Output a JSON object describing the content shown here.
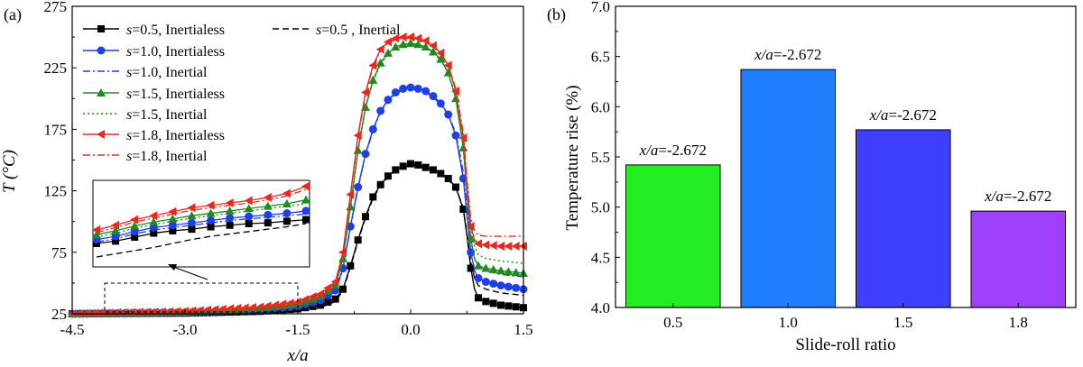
{
  "panels": {
    "a": {
      "label": "(a)",
      "legend": [
        {
          "key": "s05_nl",
          "text_prefix": "s",
          "text_rest": "=0.5, Inertialess",
          "color": "#000000",
          "dash": "solid",
          "marker": "square"
        },
        {
          "key": "s05_in",
          "text_prefix": "s",
          "text_rest": "=0.5 , Inertial",
          "color": "#000000",
          "dash": "dash",
          "marker": "none"
        },
        {
          "key": "s10_nl",
          "text_prefix": "s",
          "text_rest": "=1.0, Inertialess",
          "color": "#1f3fe6",
          "dash": "solid",
          "marker": "circle"
        },
        {
          "key": "s10_in",
          "text_prefix": "s",
          "text_rest": "=1.0, Inertial",
          "color": "#1f3fe6",
          "dash": "dashdot",
          "marker": "none"
        },
        {
          "key": "s15_nl",
          "text_prefix": "s",
          "text_rest": "=1.5, Inertialess",
          "color": "#1f8a1f",
          "dash": "solid",
          "marker": "triangle"
        },
        {
          "key": "s15_in",
          "text_prefix": "s",
          "text_rest": "=1.5, Inertial",
          "color": "#1f8a1f",
          "dash": "dot",
          "marker": "none"
        },
        {
          "key": "s18_nl",
          "text_prefix": "s",
          "text_rest": "=1.8, Inertialess",
          "color": "#e62a1f",
          "dash": "solid",
          "marker": "lefttri"
        },
        {
          "key": "s18_in",
          "text_prefix": "s",
          "text_rest": "=1.8, Inertial",
          "color": "#e62a1f",
          "dash": "dashdot",
          "marker": "none"
        }
      ]
    },
    "b": {
      "label": "(b)"
    }
  },
  "chart_data": [
    {
      "type": "line",
      "title": "",
      "xlabel": "x/a",
      "ylabel": "T (°C)",
      "xlim": [
        -4.5,
        1.5
      ],
      "ylim": [
        25,
        275
      ],
      "xticks": [
        -4.5,
        -3.0,
        -1.5,
        0.0,
        1.5
      ],
      "xtick_labels": [
        "-4.5",
        "-3.0",
        "-1.5",
        "0.0",
        "1.5"
      ],
      "yticks": [
        25,
        75,
        125,
        175,
        225,
        275
      ],
      "ytick_labels": [
        "25",
        "75",
        "125",
        "175",
        "225",
        "275"
      ],
      "series": [
        {
          "name": "s=0.5, Inertialess",
          "key": "s05_nl",
          "x": [
            -4.5,
            -3.0,
            -2.0,
            -1.5,
            -1.2,
            -1.0,
            -0.9,
            -0.8,
            -0.7,
            -0.6,
            -0.5,
            -0.4,
            -0.3,
            -0.2,
            -0.1,
            0.0,
            0.1,
            0.2,
            0.3,
            0.4,
            0.5,
            0.6,
            0.7,
            0.75,
            0.8,
            0.85,
            0.9,
            1.0,
            1.2,
            1.5
          ],
          "y": [
            25,
            25.5,
            27,
            29,
            32,
            37,
            45,
            64,
            85,
            104,
            120,
            130,
            137,
            142,
            145,
            147,
            146,
            144,
            142,
            139,
            135,
            128,
            110,
            88,
            62,
            45,
            38,
            35,
            32,
            30
          ]
        },
        {
          "name": "s=0.5 , Inertial",
          "key": "s05_in",
          "x": [
            -4.5,
            -3.0,
            -2.0,
            -1.5,
            -1.2,
            -1.0,
            -0.9,
            -0.8,
            -0.7,
            -0.6,
            -0.5,
            -0.4,
            -0.3,
            -0.2,
            -0.1,
            0.0,
            0.1,
            0.2,
            0.3,
            0.4,
            0.5,
            0.6,
            0.7,
            0.75,
            0.8,
            0.85,
            0.9,
            1.0,
            1.2,
            1.5
          ],
          "y": [
            25,
            25.3,
            26,
            27.5,
            30,
            35,
            44,
            63,
            84,
            103,
            119,
            129,
            136,
            141,
            144,
            146,
            145,
            143,
            141,
            138,
            134,
            128,
            111,
            90,
            67,
            54,
            48,
            45,
            42,
            40
          ]
        },
        {
          "name": "s=1.0, Inertialess",
          "key": "s10_nl",
          "x": [
            -4.5,
            -3.0,
            -2.0,
            -1.5,
            -1.2,
            -1.0,
            -0.9,
            -0.8,
            -0.7,
            -0.6,
            -0.5,
            -0.4,
            -0.3,
            -0.2,
            -0.1,
            0.0,
            0.1,
            0.2,
            0.3,
            0.4,
            0.5,
            0.6,
            0.7,
            0.75,
            0.8,
            0.85,
            0.9,
            1.0,
            1.2,
            1.5
          ],
          "y": [
            25,
            26,
            28.5,
            31,
            36,
            44,
            62,
            96,
            128,
            155,
            175,
            190,
            199,
            205,
            208,
            209,
            208,
            206,
            202,
            196,
            187,
            170,
            135,
            105,
            75,
            60,
            54,
            51,
            48,
            45
          ]
        },
        {
          "name": "s=1.0, Inertial",
          "key": "s10_in",
          "x": [
            -4.5,
            -3.0,
            -2.0,
            -1.5,
            -1.2,
            -1.0,
            -0.9,
            -0.8,
            -0.7,
            -0.6,
            -0.5,
            -0.4,
            -0.3,
            -0.2,
            -0.1,
            0.0,
            0.1,
            0.2,
            0.3,
            0.4,
            0.5,
            0.6,
            0.7,
            0.75,
            0.8,
            0.85,
            0.9,
            1.0,
            1.2,
            1.5
          ],
          "y": [
            25,
            25.8,
            28,
            30.5,
            35.5,
            43,
            61,
            95,
            127,
            154,
            174,
            189,
            198,
            204,
            207,
            208,
            207,
            205,
            201,
            195,
            187,
            172,
            140,
            112,
            84,
            70,
            63,
            60,
            57,
            55
          ]
        },
        {
          "name": "s=1.5, Inertialess",
          "key": "s15_nl",
          "x": [
            -4.5,
            -3.0,
            -2.0,
            -1.5,
            -1.2,
            -1.0,
            -0.9,
            -0.8,
            -0.7,
            -0.6,
            -0.5,
            -0.4,
            -0.3,
            -0.2,
            -0.1,
            0.0,
            0.1,
            0.2,
            0.3,
            0.4,
            0.5,
            0.6,
            0.7,
            0.75,
            0.8,
            0.85,
            0.9,
            1.0,
            1.2,
            1.5
          ],
          "y": [
            25,
            26.5,
            29.5,
            33,
            39,
            48,
            70,
            112,
            158,
            193,
            215,
            229,
            237,
            242,
            244,
            245,
            244,
            242,
            238,
            232,
            221,
            200,
            160,
            122,
            86,
            70,
            64,
            62,
            60,
            58
          ]
        },
        {
          "name": "s=1.5, Inertial",
          "key": "s15_in",
          "x": [
            -4.5,
            -3.0,
            -2.0,
            -1.5,
            -1.2,
            -1.0,
            -0.9,
            -0.8,
            -0.7,
            -0.6,
            -0.5,
            -0.4,
            -0.3,
            -0.2,
            -0.1,
            0.0,
            0.1,
            0.2,
            0.3,
            0.4,
            0.5,
            0.6,
            0.7,
            0.75,
            0.8,
            0.85,
            0.9,
            1.0,
            1.2,
            1.5
          ],
          "y": [
            25,
            26.3,
            29,
            32.5,
            38,
            47,
            69,
            111,
            157,
            192,
            214,
            228,
            236,
            241,
            243,
            244,
            243,
            241,
            237,
            231,
            221,
            202,
            165,
            130,
            96,
            80,
            73,
            70,
            68,
            66
          ]
        },
        {
          "name": "s=1.8, Inertialess",
          "key": "s18_nl",
          "x": [
            -4.5,
            -3.0,
            -2.0,
            -1.5,
            -1.2,
            -1.0,
            -0.9,
            -0.8,
            -0.7,
            -0.6,
            -0.5,
            -0.4,
            -0.3,
            -0.2,
            -0.1,
            0.0,
            0.1,
            0.2,
            0.3,
            0.4,
            0.5,
            0.6,
            0.7,
            0.75,
            0.8,
            0.85,
            0.9,
            1.0,
            1.2,
            1.5
          ],
          "y": [
            25,
            27,
            30.5,
            34.5,
            41,
            51,
            75,
            122,
            170,
            205,
            227,
            240,
            246,
            249,
            250,
            250,
            249,
            247,
            243,
            237,
            227,
            206,
            168,
            128,
            96,
            85,
            82,
            81,
            80,
            80
          ]
        },
        {
          "name": "s=1.8, Inertial",
          "key": "s18_in",
          "x": [
            -4.5,
            -3.0,
            -2.0,
            -1.5,
            -1.2,
            -1.0,
            -0.9,
            -0.8,
            -0.7,
            -0.6,
            -0.5,
            -0.4,
            -0.3,
            -0.2,
            -0.1,
            0.0,
            0.1,
            0.2,
            0.3,
            0.4,
            0.5,
            0.6,
            0.7,
            0.75,
            0.8,
            0.85,
            0.9,
            1.0,
            1.2,
            1.5
          ],
          "y": [
            25,
            26.8,
            30,
            34,
            40.5,
            50,
            74,
            121,
            169,
            204,
            226,
            239,
            245,
            248,
            249,
            249,
            248,
            246,
            242,
            236,
            227,
            208,
            172,
            133,
            102,
            92,
            89,
            88,
            88,
            88
          ]
        }
      ],
      "inset": {
        "description": "zoom",
        "series_rel": {
          "s05_nl": [
            0.25,
            0.28,
            0.33,
            0.38,
            0.41,
            0.43,
            0.46,
            0.48,
            0.5,
            0.51,
            0.53,
            0.55
          ],
          "s05_in": [
            0.08,
            0.12,
            0.16,
            0.2,
            0.25,
            0.3,
            0.34,
            0.37,
            0.4,
            0.43,
            0.46,
            0.5
          ],
          "s10_nl": [
            0.3,
            0.34,
            0.4,
            0.45,
            0.48,
            0.51,
            0.54,
            0.57,
            0.59,
            0.61,
            0.63,
            0.66
          ],
          "s10_in": [
            0.27,
            0.31,
            0.37,
            0.42,
            0.45,
            0.48,
            0.51,
            0.54,
            0.56,
            0.58,
            0.6,
            0.62
          ],
          "s15_nl": [
            0.36,
            0.41,
            0.47,
            0.52,
            0.56,
            0.6,
            0.63,
            0.66,
            0.69,
            0.72,
            0.75,
            0.8
          ],
          "s15_in": [
            0.33,
            0.38,
            0.44,
            0.49,
            0.53,
            0.57,
            0.6,
            0.63,
            0.66,
            0.69,
            0.72,
            0.75
          ],
          "s18_nl": [
            0.42,
            0.48,
            0.55,
            0.6,
            0.65,
            0.7,
            0.73,
            0.76,
            0.79,
            0.83,
            0.88,
            0.97
          ],
          "s18_in": [
            0.39,
            0.45,
            0.52,
            0.57,
            0.62,
            0.67,
            0.7,
            0.73,
            0.76,
            0.8,
            0.85,
            0.93
          ]
        }
      }
    },
    {
      "type": "bar",
      "title": "",
      "xlabel": "Slide-roll ratio",
      "ylabel": "Temperature rise (%)",
      "categories": [
        "0.5",
        "1.0",
        "1.5",
        "1.8"
      ],
      "values": [
        5.42,
        6.37,
        5.77,
        4.96
      ],
      "colors": [
        "#22ee22",
        "#1f7fff",
        "#3f3fff",
        "#9f3fff"
      ],
      "bar_label_prefix": "x/a",
      "bar_label_rest": "=-2.672",
      "ylim": [
        4.0,
        7.0
      ],
      "yticks": [
        4.0,
        4.5,
        5.0,
        5.5,
        6.0,
        6.5,
        7.0
      ],
      "ytick_labels": [
        "4.0",
        "4.5",
        "5.0",
        "5.5",
        "6.0",
        "6.5",
        "7.0"
      ]
    }
  ]
}
